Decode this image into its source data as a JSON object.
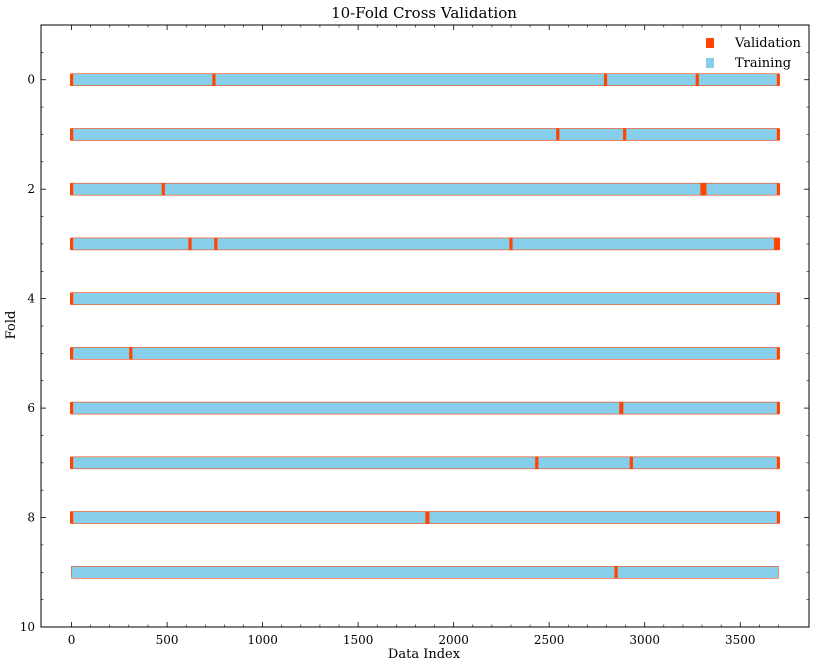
{
  "chart_data": {
    "type": "timeline",
    "title": "10-Fold Cross Validation",
    "xlabel": "Data Index",
    "ylabel": "Fold",
    "xlim": [
      -160,
      3860
    ],
    "ylim": [
      10,
      -1
    ],
    "xticks": [
      0,
      500,
      1000,
      1500,
      2000,
      2500,
      3000,
      3500
    ],
    "yticks": [
      0,
      2,
      4,
      6,
      8,
      10
    ],
    "n_samples": 3700,
    "legend": {
      "position": "top-right",
      "entries": [
        {
          "label": "Validation",
          "color": "#ff4500"
        },
        {
          "label": "Training",
          "color": "#87ceeb"
        }
      ]
    },
    "colors": {
      "validation": "#ff4500",
      "training": "#87ceeb"
    },
    "folds": [
      {
        "fold": 0,
        "validation_indices": [
          0,
          745,
          2795,
          3275,
          3700
        ]
      },
      {
        "fold": 1,
        "validation_indices": [
          0,
          2545,
          2895,
          3700
        ]
      },
      {
        "fold": 2,
        "validation_indices": [
          0,
          480,
          3300,
          3315,
          3700
        ]
      },
      {
        "fold": 3,
        "validation_indices": [
          0,
          620,
          755,
          2300,
          3685,
          3695,
          3700
        ]
      },
      {
        "fold": 4,
        "validation_indices": [
          0,
          3700
        ]
      },
      {
        "fold": 5,
        "validation_indices": [
          0,
          310,
          3700
        ]
      },
      {
        "fold": 6,
        "validation_indices": [
          0,
          2875,
          2880,
          3700
        ]
      },
      {
        "fold": 7,
        "validation_indices": [
          0,
          2435,
          2930,
          3700
        ]
      },
      {
        "fold": 8,
        "validation_indices": [
          0,
          1860,
          1865,
          3700
        ]
      },
      {
        "fold": 9,
        "validation_indices": [
          2850
        ]
      }
    ]
  }
}
